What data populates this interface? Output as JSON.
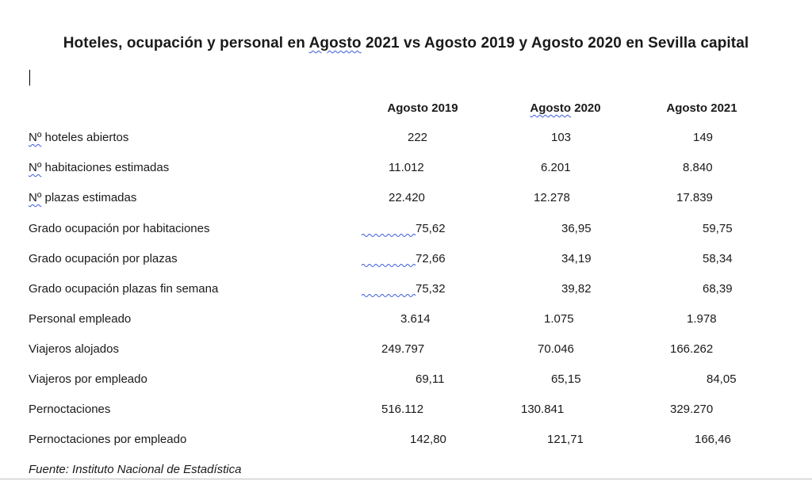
{
  "document": {
    "title": {
      "part1": "Hoteles, ocupación y personal en ",
      "agosto": "Agosto",
      "part2": " 2021 vs Agosto 2019 y Agosto 2020 en Sevilla capital"
    },
    "columns": [
      {
        "agosto": "Agosto",
        "year": " 2019"
      },
      {
        "agosto": "Agosto",
        "year": " 2020"
      },
      {
        "agosto": "Agosto",
        "year": " 2021"
      }
    ],
    "rows": [
      {
        "prefix": "Nº",
        "label": " hoteles abiertos",
        "values": [
          "222",
          "103",
          "149"
        ]
      },
      {
        "prefix": "Nº",
        "label": " habitaciones estimadas",
        "values": [
          "11.012",
          "6.201",
          "8.840"
        ]
      },
      {
        "prefix": "Nº",
        "label": " plazas estimadas",
        "values": [
          "22.420",
          "12.278",
          "17.839"
        ]
      },
      {
        "prefix": "",
        "label": "Grado ocupación por habitaciones",
        "values": [
          "75,62",
          "36,95",
          "59,75"
        ]
      },
      {
        "prefix": "",
        "label": "Grado ocupación por plazas",
        "values": [
          "72,66",
          "34,19",
          "58,34"
        ]
      },
      {
        "prefix": "",
        "label": "Grado ocupación plazas fin semana",
        "values": [
          "75,32",
          "39,82",
          "68,39"
        ]
      },
      {
        "prefix": "",
        "label": "Personal empleado",
        "values": [
          "3.614",
          "1.075",
          "1.978"
        ]
      },
      {
        "prefix": "",
        "label": "Viajeros alojados",
        "values": [
          "249.797",
          "70.046",
          "166.262"
        ]
      },
      {
        "prefix": "",
        "label": "Viajeros por empleado",
        "values": [
          "69,11",
          "65,15",
          "84,05"
        ]
      },
      {
        "prefix": "",
        "label": "Pernoctaciones",
        "values": [
          "516.112",
          "130.841",
          "329.270"
        ]
      },
      {
        "prefix": "",
        "label": "Pernoctaciones por empleado",
        "values": [
          "142,80",
          "121,71",
          "166,46"
        ]
      }
    ],
    "source": "Fuente: Instituto Nacional de Estadística"
  },
  "colors": {
    "text": "#1a1a1a",
    "spellcheck": "#3b5bdb"
  }
}
